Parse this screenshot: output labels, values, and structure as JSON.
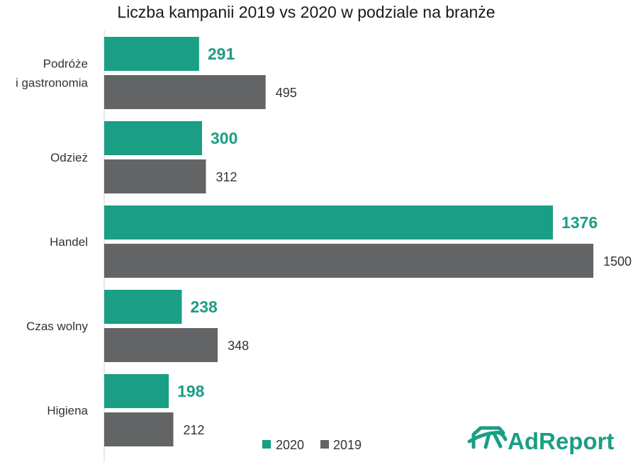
{
  "chart_data": {
    "type": "bar",
    "orientation": "horizontal",
    "title": "Liczba kampanii 2019 vs 2020 w podziale na branże",
    "categories": [
      [
        "Podróże",
        "i gastronomia"
      ],
      [
        "Odzież"
      ],
      [
        "Handel"
      ],
      [
        "Czas wolny"
      ],
      [
        "Higiena"
      ]
    ],
    "series": [
      {
        "name": "2020",
        "values": [
          291,
          300,
          1376,
          238,
          198
        ],
        "color": "#1a9e84"
      },
      {
        "name": "2019",
        "values": [
          495,
          312,
          1500,
          348,
          212
        ],
        "color": "#636466"
      }
    ],
    "xlim": [
      0,
      1500
    ],
    "xlabel": "",
    "ylabel": "",
    "legend_position": "bottom",
    "grid": false
  },
  "branding": {
    "logo_text": "AdReport",
    "logo_icon": "adreport-logo-icon",
    "logo_color": "#1a9e84"
  }
}
